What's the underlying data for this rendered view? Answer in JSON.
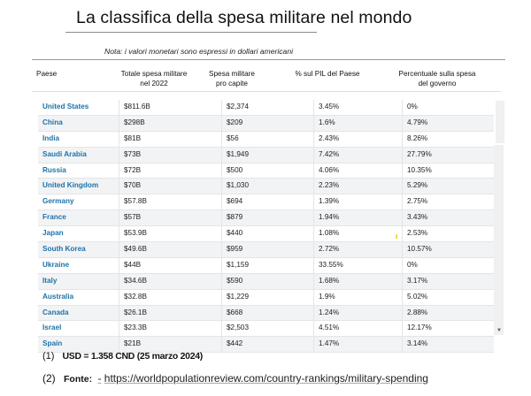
{
  "title": "La classifica della spesa militare nel mondo",
  "note": "Nota: i valori monetari sono espressi in dollari americani",
  "table": {
    "headers": {
      "country": "Paese",
      "total_line1": "Totale spesa militare",
      "total_line2": "nel 2022",
      "per_capita_line1": "Spesa militare",
      "per_capita_line2": "pro capite",
      "gdp_pct": "% sul PIL del Paese",
      "gov_pct_line1": "Percentuale sulla spesa",
      "gov_pct_line2": "del governo"
    },
    "rows": [
      {
        "country": "United States",
        "total": "$811.6B",
        "per_capita": "$2,374",
        "gdp_pct": "3.45%",
        "gov_pct": "0%"
      },
      {
        "country": "China",
        "total": "$298B",
        "per_capita": "$209",
        "gdp_pct": "1.6%",
        "gov_pct": "4.79%"
      },
      {
        "country": "India",
        "total": "$81B",
        "per_capita": "$56",
        "gdp_pct": "2.43%",
        "gov_pct": "8.26%"
      },
      {
        "country": "Saudi Arabia",
        "total": "$73B",
        "per_capita": "$1,949",
        "gdp_pct": "7.42%",
        "gov_pct": "27.79%"
      },
      {
        "country": "Russia",
        "total": "$72B",
        "per_capita": "$500",
        "gdp_pct": "4.06%",
        "gov_pct": "10.35%"
      },
      {
        "country": "United Kingdom",
        "total": "$70B",
        "per_capita": "$1,030",
        "gdp_pct": "2.23%",
        "gov_pct": "5.29%"
      },
      {
        "country": "Germany",
        "total": "$57.8B",
        "per_capita": "$694",
        "gdp_pct": "1.39%",
        "gov_pct": "2.75%"
      },
      {
        "country": "France",
        "total": "$57B",
        "per_capita": "$879",
        "gdp_pct": "1.94%",
        "gov_pct": "3.43%"
      },
      {
        "country": "Japan",
        "total": "$53.9B",
        "per_capita": "$440",
        "gdp_pct": "1.08%",
        "gov_pct": "2.53%"
      },
      {
        "country": "South Korea",
        "total": "$49.6B",
        "per_capita": "$959",
        "gdp_pct": "2.72%",
        "gov_pct": "10.57%"
      },
      {
        "country": "Ukraine",
        "total": "$44B",
        "per_capita": "$1,159",
        "gdp_pct": "33.55%",
        "gov_pct": "0%"
      },
      {
        "country": "Italy",
        "total": "$34.6B",
        "per_capita": "$590",
        "gdp_pct": "1.68%",
        "gov_pct": "3.17%"
      },
      {
        "country": "Australia",
        "total": "$32.8B",
        "per_capita": "$1,229",
        "gdp_pct": "1.9%",
        "gov_pct": "5.02%"
      },
      {
        "country": "Canada",
        "total": "$26.1B",
        "per_capita": "$668",
        "gdp_pct": "1.24%",
        "gov_pct": "2.88%"
      },
      {
        "country": "Israel",
        "total": "$23.3B",
        "per_capita": "$2,503",
        "gdp_pct": "4.51%",
        "gov_pct": "12.17%"
      },
      {
        "country": "Spain",
        "total": "$21B",
        "per_capita": "$442",
        "gdp_pct": "1.47%",
        "gov_pct": "3.14%"
      }
    ]
  },
  "footnotes": {
    "note1_num": "(1)",
    "note1_text": "USD = 1.358 CND (25 marzo 2024)",
    "note2_num": "(2)",
    "note2_label": "Fonte:",
    "note2_dash": "-",
    "note2_link": "https://worldpopulationreview.com/country-rankings/military-spending"
  },
  "colors": {
    "country_link": "#1e73a8",
    "row_alt_bg": "#f2f3f5"
  }
}
